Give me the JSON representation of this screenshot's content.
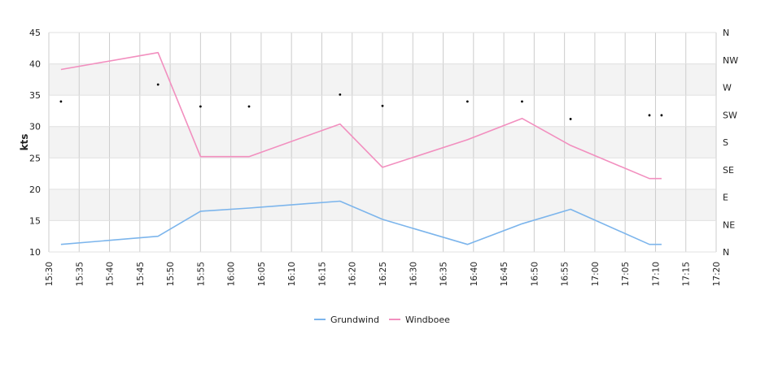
{
  "chart_data": {
    "type": "line",
    "title": "",
    "ylabel": "kts",
    "ylim": [
      10,
      45
    ],
    "yticks": [
      10,
      15,
      20,
      25,
      30,
      35,
      40,
      45
    ],
    "y2_ticks": [
      "N",
      "NE",
      "E",
      "SE",
      "S",
      "SW",
      "W",
      "NW",
      "N"
    ],
    "x_range": [
      "15:30",
      "17:20"
    ],
    "x_ticks": [
      "15:30",
      "15:35",
      "15:40",
      "15:45",
      "15:50",
      "15:55",
      "16:00",
      "16:05",
      "16:10",
      "16:15",
      "16:20",
      "16:25",
      "16:30",
      "16:35",
      "16:40",
      "16:45",
      "16:50",
      "16:55",
      "17:00",
      "17:05",
      "17:10",
      "17:15",
      "17:20"
    ],
    "grid": true,
    "legend_position": "bottom-center",
    "series": [
      {
        "name": "Grundwind",
        "color": "#7cb5ec",
        "x": [
          "15:32",
          "15:48",
          "15:55",
          "16:03",
          "16:18",
          "16:25",
          "16:39",
          "16:48",
          "16:56",
          "17:09",
          "17:11"
        ],
        "values": [
          11.2,
          12.5,
          16.5,
          17.0,
          18.1,
          15.2,
          11.2,
          14.5,
          16.8,
          11.2,
          11.2
        ]
      },
      {
        "name": "Windboee",
        "color": "#f28fbf",
        "x": [
          "15:32",
          "15:48",
          "15:55",
          "16:03",
          "16:18",
          "16:25",
          "16:39",
          "16:48",
          "16:56",
          "17:09",
          "17:11"
        ],
        "values": [
          39.1,
          41.8,
          25.2,
          25.2,
          30.4,
          23.5,
          27.9,
          31.3,
          27.0,
          21.7,
          21.7
        ]
      }
    ],
    "direction_points": {
      "x": [
        "15:32",
        "15:48",
        "15:55",
        "16:03",
        "16:18",
        "16:25",
        "16:39",
        "16:48",
        "16:56",
        "17:09",
        "17:11"
      ],
      "values": [
        34.0,
        36.7,
        33.2,
        33.2,
        35.1,
        33.3,
        34.0,
        34.0,
        31.2,
        31.8,
        31.8
      ]
    }
  }
}
